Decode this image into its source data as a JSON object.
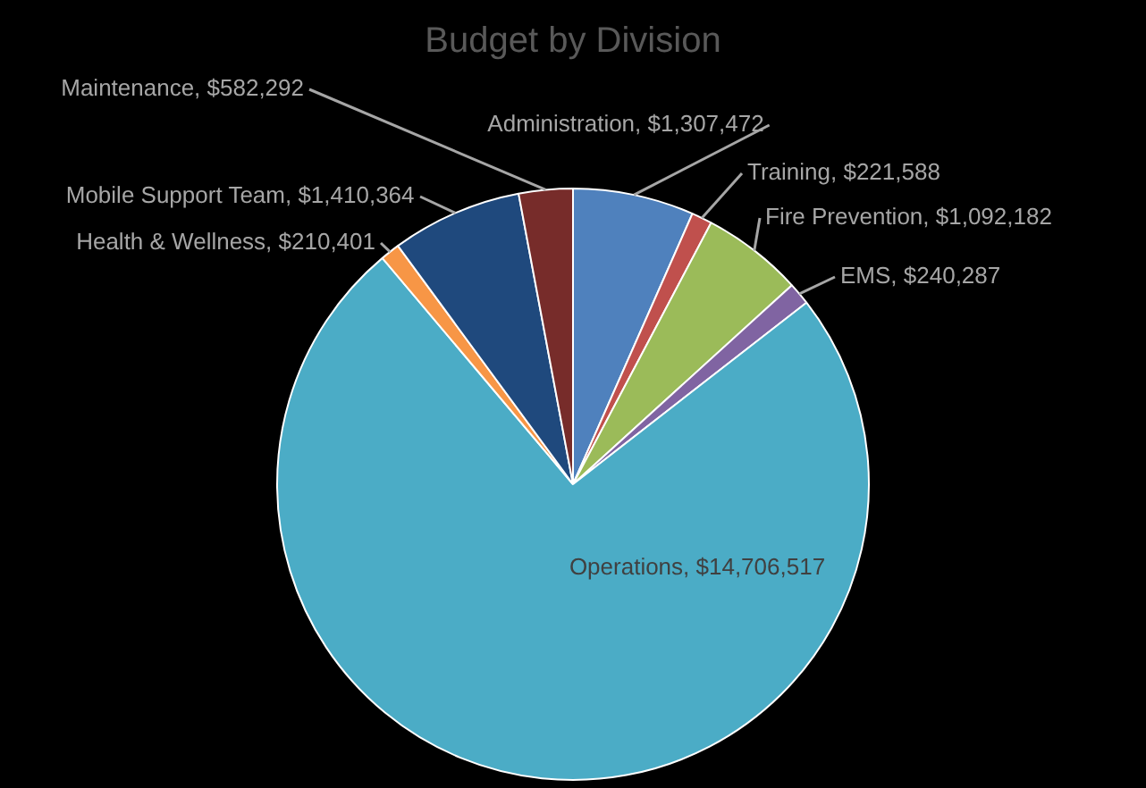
{
  "chart_data": {
    "type": "pie",
    "title": "Budget by Division",
    "categories": [
      "Administration",
      "Training",
      "Fire Prevention",
      "EMS",
      "Operations",
      "Health & Wellness",
      "Mobile Support Team",
      "Maintenance"
    ],
    "values": [
      1307472,
      221588,
      1092182,
      240287,
      14706517,
      210401,
      1410364,
      582292
    ],
    "value_labels": [
      "$1,307,472",
      "$221,588",
      "$1,092,182",
      "$240,287",
      "$14,706,517",
      "$210,401",
      "$1,410,364",
      "$582,292"
    ],
    "colors": [
      "#4f81bd",
      "#c0504d",
      "#9bbb59",
      "#8064a2",
      "#4bacc6",
      "#f79646",
      "#1f497d",
      "#772c2a"
    ],
    "legend": false
  }
}
